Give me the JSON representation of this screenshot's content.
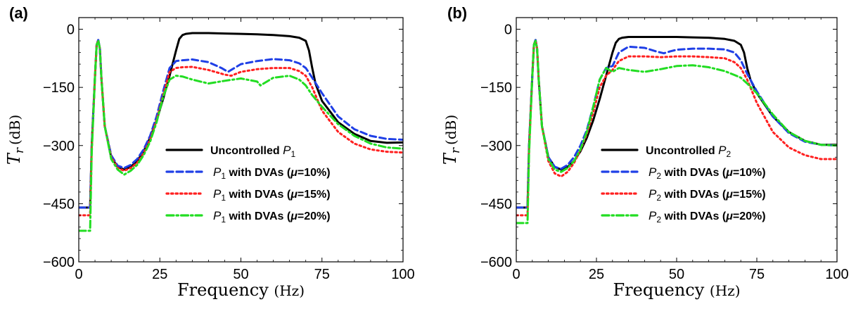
{
  "chart_data": [
    {
      "type": "line",
      "panel_label": "(a)",
      "xlabel_main": "Frequency",
      "xlabel_unit": "(Hz)",
      "ylabel_sym": "T",
      "ylabel_sub": "r",
      "ylabel_unit": "(dB)",
      "xlim": [
        0,
        100
      ],
      "ylim": [
        -600,
        30
      ],
      "xticks": [
        0,
        25,
        50,
        75,
        100
      ],
      "yticks": [
        0,
        -150,
        -300,
        -450,
        -600
      ],
      "xtick_labels": [
        "0",
        "25",
        "50",
        "75",
        "100"
      ],
      "ytick_labels": [
        "0",
        "−150",
        "−300",
        "−450",
        "−600"
      ],
      "legend_position": "bottom-right",
      "legend": [
        {
          "prefix": "Uncontrolled ",
          "sym": "P",
          "sub": "1",
          "suffix": "",
          "color": "#000000",
          "style": "solid"
        },
        {
          "prefix": "",
          "sym": "P",
          "sub": "1",
          "suffix": " with DVAs (",
          "mu": "μ",
          "pct": "=10%)",
          "color": "#1f3fe6",
          "style": "dashed"
        },
        {
          "prefix": "",
          "sym": "P",
          "sub": "1",
          "suffix": " with DVAs (",
          "mu": "μ",
          "pct": "=15%)",
          "color": "#ff2020",
          "style": "dotted"
        },
        {
          "prefix": "",
          "sym": "P",
          "sub": "1",
          "suffix": " with DVAs (",
          "mu": "μ",
          "pct": "=20%)",
          "color": "#22dd22",
          "style": "dashdot"
        }
      ],
      "series": [
        {
          "color": "#000000",
          "style": "solid",
          "x": [
            0,
            3.5,
            4,
            5,
            5.5,
            6,
            6.5,
            7,
            8,
            10,
            12,
            14,
            16,
            18,
            20,
            22,
            24,
            26,
            28,
            30,
            31,
            32,
            33,
            35,
            40,
            45,
            50,
            55,
            60,
            65,
            68,
            70,
            71,
            72,
            73,
            75,
            80,
            85,
            90,
            95,
            100
          ],
          "y": [
            -460,
            -460,
            -300,
            -120,
            -40,
            -28,
            -50,
            -130,
            -250,
            -330,
            -355,
            -362,
            -355,
            -340,
            -315,
            -280,
            -235,
            -180,
            -120,
            -55,
            -25,
            -15,
            -12,
            -10,
            -10,
            -11,
            -12,
            -13,
            -15,
            -18,
            -22,
            -30,
            -55,
            -100,
            -140,
            -185,
            -240,
            -270,
            -288,
            -293,
            -292
          ]
        },
        {
          "color": "#1f3fe6",
          "style": "dashed",
          "x": [
            0,
            3.5,
            4,
            5,
            5.5,
            6,
            6.5,
            7,
            8,
            10,
            12,
            14,
            16,
            18,
            20,
            22,
            24,
            26,
            28,
            30,
            32,
            35,
            40,
            44,
            46,
            48,
            50,
            55,
            60,
            65,
            68,
            70,
            72,
            75,
            80,
            85,
            90,
            95,
            100
          ],
          "y": [
            -460,
            -460,
            -300,
            -120,
            -40,
            -28,
            -50,
            -130,
            -250,
            -325,
            -352,
            -358,
            -350,
            -335,
            -310,
            -275,
            -225,
            -160,
            -100,
            -82,
            -80,
            -78,
            -85,
            -100,
            -110,
            -100,
            -90,
            -82,
            -77,
            -80,
            -88,
            -100,
            -125,
            -165,
            -225,
            -258,
            -275,
            -283,
            -285
          ]
        },
        {
          "color": "#ff2020",
          "style": "dotted",
          "x": [
            0,
            3.5,
            4,
            5,
            5.5,
            6,
            6.5,
            7,
            8,
            10,
            12,
            14,
            16,
            18,
            20,
            22,
            24,
            26,
            28,
            30,
            32,
            35,
            40,
            45,
            47,
            50,
            55,
            60,
            65,
            68,
            70,
            72,
            75,
            80,
            85,
            90,
            95,
            100
          ],
          "y": [
            -480,
            -480,
            -310,
            -120,
            -40,
            -30,
            -50,
            -130,
            -250,
            -330,
            -358,
            -365,
            -358,
            -345,
            -320,
            -285,
            -235,
            -170,
            -110,
            -100,
            -98,
            -97,
            -105,
            -117,
            -120,
            -110,
            -103,
            -100,
            -100,
            -108,
            -120,
            -150,
            -210,
            -265,
            -295,
            -310,
            -316,
            -318
          ]
        },
        {
          "color": "#22dd22",
          "style": "dashdot",
          "x": [
            0,
            3.5,
            4,
            5,
            5.5,
            6,
            6.5,
            7,
            8,
            10,
            12,
            14,
            16,
            18,
            20,
            22,
            24,
            26,
            28,
            30,
            32,
            35,
            40,
            45,
            50,
            55,
            56,
            60,
            65,
            68,
            70,
            72,
            75,
            80,
            85,
            90,
            95,
            100
          ],
          "y": [
            -520,
            -520,
            -320,
            -120,
            -40,
            -30,
            -50,
            -130,
            -250,
            -335,
            -362,
            -375,
            -365,
            -350,
            -325,
            -290,
            -240,
            -175,
            -130,
            -120,
            -122,
            -130,
            -140,
            -133,
            -127,
            -135,
            -145,
            -125,
            -120,
            -130,
            -145,
            -170,
            -200,
            -245,
            -275,
            -295,
            -305,
            -308
          ]
        }
      ]
    },
    {
      "type": "line",
      "panel_label": "(b)",
      "xlabel_main": "Frequency",
      "xlabel_unit": "(Hz)",
      "ylabel_sym": "T",
      "ylabel_sub": "r",
      "ylabel_unit": "(dB)",
      "xlim": [
        0,
        100
      ],
      "ylim": [
        -600,
        30
      ],
      "xticks": [
        0,
        25,
        50,
        75,
        100
      ],
      "yticks": [
        0,
        -150,
        -300,
        -450,
        -600
      ],
      "xtick_labels": [
        "0",
        "25",
        "50",
        "75",
        "100"
      ],
      "ytick_labels": [
        "0",
        "−150",
        "−300",
        "−450",
        "−600"
      ],
      "legend_position": "bottom-right",
      "legend": [
        {
          "prefix": "Uncontrolled ",
          "sym": "P",
          "sub": "2",
          "suffix": "",
          "color": "#000000",
          "style": "solid"
        },
        {
          "prefix": "",
          "sym": "P",
          "sub": "2",
          "suffix": " with DVAs (",
          "mu": "μ",
          "pct": "=10%)",
          "color": "#1f3fe6",
          "style": "dashed"
        },
        {
          "prefix": "",
          "sym": "P",
          "sub": "2",
          "suffix": " with DVAs (",
          "mu": "μ",
          "pct": "=15%)",
          "color": "#ff2020",
          "style": "dotted"
        },
        {
          "prefix": "",
          "sym": "P",
          "sub": "2",
          "suffix": " with DVAs (",
          "mu": "μ",
          "pct": "=20%)",
          "color": "#22dd22",
          "style": "dashdot"
        }
      ],
      "series": [
        {
          "color": "#000000",
          "style": "solid",
          "x": [
            0,
            3.5,
            4,
            5,
            5.5,
            6,
            6.5,
            7,
            8,
            10,
            12,
            14,
            16,
            18,
            20,
            22,
            24,
            26,
            28,
            30,
            31,
            32,
            33,
            35,
            40,
            45,
            50,
            55,
            60,
            65,
            68,
            70,
            71,
            72,
            73,
            75,
            80,
            85,
            90,
            95,
            100
          ],
          "y": [
            -460,
            -460,
            -300,
            -120,
            -40,
            -28,
            -50,
            -130,
            -250,
            -330,
            -355,
            -362,
            -355,
            -340,
            -315,
            -280,
            -235,
            -180,
            -120,
            -60,
            -35,
            -25,
            -22,
            -20,
            -20,
            -20,
            -20,
            -21,
            -22,
            -25,
            -30,
            -40,
            -60,
            -100,
            -130,
            -165,
            -225,
            -265,
            -288,
            -298,
            -298
          ]
        },
        {
          "color": "#1f3fe6",
          "style": "dashed",
          "x": [
            0,
            3.5,
            4,
            5,
            5.5,
            6,
            6.5,
            7,
            8,
            10,
            12,
            14,
            16,
            18,
            20,
            22,
            24,
            26,
            28,
            30,
            32,
            35,
            40,
            44,
            46,
            48,
            50,
            55,
            60,
            65,
            68,
            70,
            72,
            75,
            80,
            85,
            90,
            95,
            100
          ],
          "y": [
            -460,
            -460,
            -300,
            -120,
            -40,
            -28,
            -50,
            -130,
            -250,
            -330,
            -355,
            -360,
            -350,
            -330,
            -300,
            -260,
            -200,
            -130,
            -100,
            -95,
            -60,
            -45,
            -48,
            -58,
            -62,
            -57,
            -53,
            -50,
            -50,
            -52,
            -60,
            -80,
            -115,
            -160,
            -225,
            -268,
            -290,
            -298,
            -300
          ]
        },
        {
          "color": "#ff2020",
          "style": "dotted",
          "x": [
            0,
            3.5,
            4,
            5,
            5.5,
            6,
            6.5,
            7,
            8,
            10,
            12,
            14,
            16,
            18,
            20,
            22,
            24,
            26,
            28,
            30,
            32,
            35,
            40,
            45,
            50,
            55,
            60,
            65,
            68,
            70,
            72,
            75,
            80,
            85,
            90,
            95,
            100
          ],
          "y": [
            -480,
            -480,
            -310,
            -120,
            -40,
            -30,
            -50,
            -130,
            -250,
            -340,
            -372,
            -380,
            -368,
            -345,
            -312,
            -270,
            -215,
            -150,
            -120,
            -105,
            -82,
            -70,
            -70,
            -72,
            -70,
            -70,
            -72,
            -75,
            -85,
            -100,
            -130,
            -190,
            -265,
            -305,
            -325,
            -335,
            -335
          ]
        },
        {
          "color": "#22dd22",
          "style": "dashdot",
          "x": [
            0,
            3.5,
            4,
            5,
            5.5,
            6,
            6.5,
            7,
            8,
            10,
            12,
            14,
            16,
            18,
            20,
            22,
            24,
            26,
            28,
            30,
            32,
            35,
            40,
            45,
            50,
            55,
            60,
            65,
            68,
            70,
            72,
            75,
            80,
            85,
            90,
            95,
            100
          ],
          "y": [
            -500,
            -500,
            -320,
            -120,
            -40,
            -30,
            -50,
            -130,
            -250,
            -335,
            -362,
            -368,
            -358,
            -340,
            -310,
            -265,
            -200,
            -130,
            -100,
            -110,
            -100,
            -105,
            -110,
            -103,
            -95,
            -93,
            -98,
            -108,
            -118,
            -125,
            -140,
            -165,
            -220,
            -265,
            -288,
            -298,
            -300
          ]
        }
      ]
    }
  ]
}
